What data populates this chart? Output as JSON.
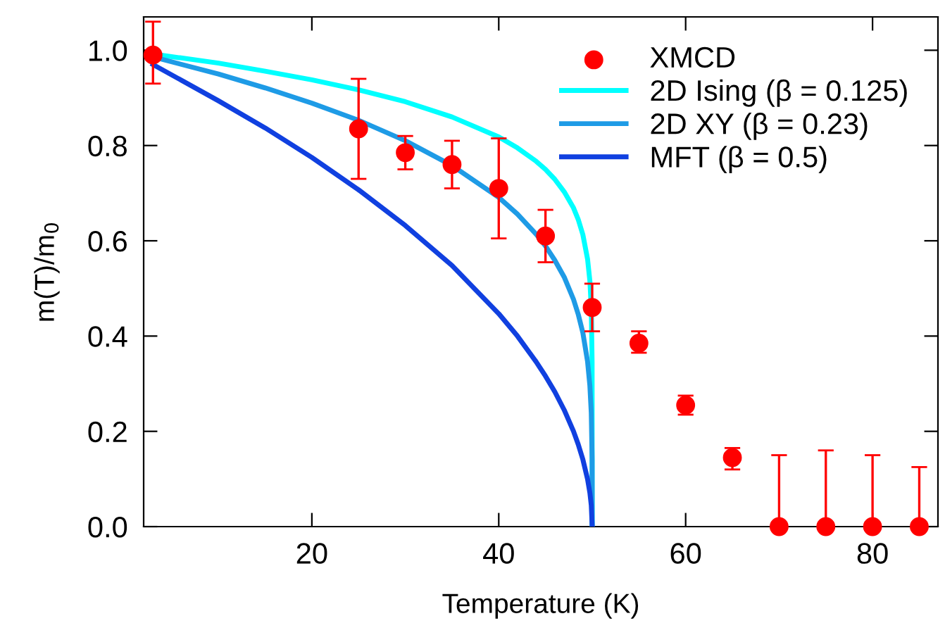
{
  "chart_data": {
    "type": "scatter",
    "xlabel": "Temperature (K)",
    "ylabel": "m(T)/m$_{0}$",
    "xlim": [
      2,
      87
    ],
    "ylim": [
      0,
      1.07
    ],
    "xticks": [
      20,
      40,
      60,
      80
    ],
    "yticks": [
      {
        "value": 0,
        "label": "0.0"
      },
      {
        "value": 0.2,
        "label": "0.2"
      },
      {
        "value": 0.4,
        "label": "0.4"
      },
      {
        "value": 0.6,
        "label": "0.6"
      },
      {
        "value": 0.8,
        "label": "0.8"
      },
      {
        "value": 1.0,
        "label": "1.0"
      }
    ],
    "grid": false,
    "legend": "top right",
    "series": [
      {
        "name": "XMCD",
        "marker": "circle",
        "color": "#ff0000",
        "x": [
          3,
          25,
          30,
          35,
          40,
          45,
          50,
          55,
          60,
          65,
          70,
          75,
          80,
          85
        ],
        "values": [
          0.99,
          0.835,
          0.785,
          0.76,
          0.71,
          0.61,
          0.46,
          0.385,
          0.255,
          0.145,
          0,
          0,
          0,
          0
        ],
        "errors": [
          [
            0.93,
            1.06
          ],
          [
            0.73,
            0.94
          ],
          [
            0.75,
            0.82
          ],
          [
            0.71,
            0.81
          ],
          [
            0.605,
            0.815
          ],
          [
            0.555,
            0.665
          ],
          [
            0.41,
            0.51
          ],
          [
            0.365,
            0.41
          ],
          [
            0.235,
            0.275
          ],
          [
            0.12,
            0.165
          ],
          [
            0,
            0.15
          ],
          [
            0,
            0.16
          ],
          [
            0,
            0.15
          ],
          [
            0,
            0.125
          ]
        ]
      },
      {
        "name": "2D Ising (β = 0.125)",
        "type": "line",
        "color": "#00ffff",
        "x": [
          3,
          10,
          15,
          20,
          25,
          30,
          35,
          40,
          42,
          44,
          45,
          46,
          47,
          48,
          48.5,
          49,
          49.5,
          49.75,
          49.9,
          49.99,
          50
        ],
        "values": [
          0.992,
          0.973,
          0.956,
          0.938,
          0.917,
          0.892,
          0.86,
          0.818,
          0.795,
          0.767,
          0.75,
          0.729,
          0.703,
          0.669,
          0.645,
          0.613,
          0.562,
          0.516,
          0.46,
          0.345,
          0
        ]
      },
      {
        "name": "2D XY (β = 0.23)",
        "type": "line",
        "color": "#1e9be6",
        "x": [
          3,
          10,
          15,
          20,
          25,
          30,
          35,
          40,
          42,
          44,
          45,
          46,
          47,
          48,
          48.5,
          49,
          49.5,
          49.75,
          49.9,
          49.99,
          50
        ],
        "values": [
          0.986,
          0.95,
          0.921,
          0.889,
          0.853,
          0.81,
          0.758,
          0.691,
          0.656,
          0.614,
          0.589,
          0.559,
          0.524,
          0.477,
          0.446,
          0.407,
          0.347,
          0.296,
          0.239,
          0.141,
          0
        ]
      },
      {
        "name": "MFT (β = 0.5)",
        "type": "line",
        "color": "#1040e0",
        "x": [
          3,
          10,
          15,
          20,
          25,
          30,
          35,
          40,
          42,
          44,
          45,
          46,
          47,
          48,
          48.5,
          49,
          49.5,
          49.75,
          49.9,
          50
        ],
        "values": [
          0.97,
          0.894,
          0.837,
          0.775,
          0.707,
          0.632,
          0.548,
          0.447,
          0.4,
          0.346,
          0.316,
          0.283,
          0.245,
          0.2,
          0.173,
          0.141,
          0.1,
          0.071,
          0.045,
          0
        ]
      }
    ]
  }
}
